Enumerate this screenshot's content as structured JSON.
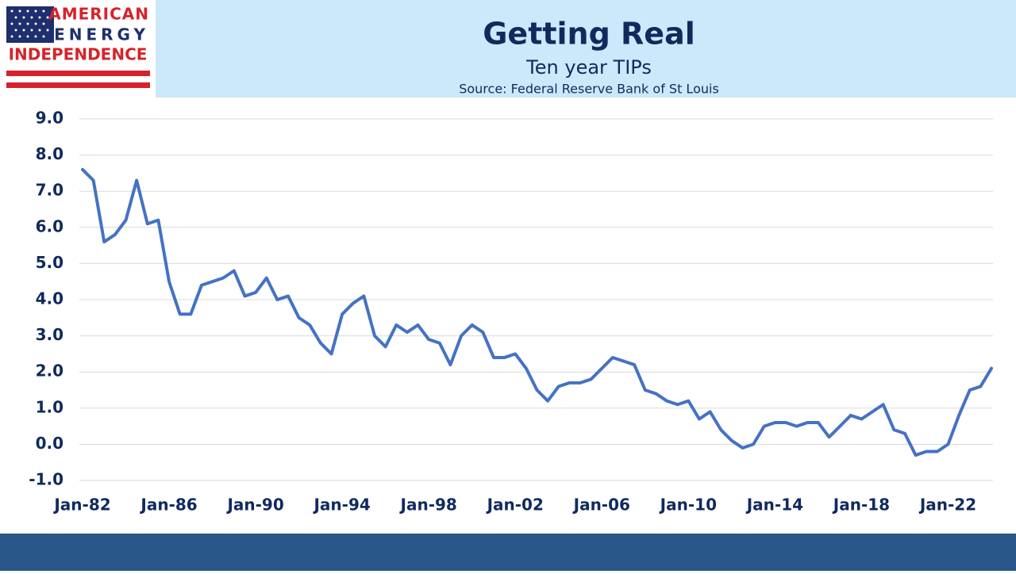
{
  "logo": {
    "lines": [
      "AMERICAN",
      "ENERGY",
      "INDEPENDENCE"
    ]
  },
  "chart_data": {
    "type": "line",
    "title": "Getting Real",
    "subtitle": "Ten year TIPs",
    "source": "Source: Federal Reserve Bank of St Louis",
    "categories": [
      "Jan-82",
      null,
      null,
      null,
      null,
      null,
      null,
      null,
      "Jan-86",
      null,
      null,
      null,
      null,
      null,
      null,
      null,
      "Jan-90",
      null,
      null,
      null,
      null,
      null,
      null,
      null,
      "Jan-94",
      null,
      null,
      null,
      null,
      null,
      null,
      null,
      "Jan-98",
      null,
      null,
      null,
      null,
      null,
      null,
      null,
      "Jan-02",
      null,
      null,
      null,
      null,
      null,
      null,
      null,
      "Jan-06",
      null,
      null,
      null,
      null,
      null,
      null,
      null,
      "Jan-10",
      null,
      null,
      null,
      null,
      null,
      null,
      null,
      "Jan-14",
      null,
      null,
      null,
      null,
      null,
      null,
      null,
      "Jan-18",
      null,
      null,
      null,
      null,
      null,
      null,
      null,
      "Jan-22",
      null,
      null,
      null,
      null
    ],
    "values": [
      7.6,
      7.3,
      5.6,
      5.8,
      6.2,
      7.3,
      6.1,
      6.2,
      4.5,
      3.6,
      3.6,
      4.4,
      4.5,
      4.6,
      4.8,
      4.1,
      4.2,
      4.6,
      4.0,
      4.1,
      3.5,
      3.3,
      2.8,
      2.5,
      3.6,
      3.9,
      4.1,
      3.0,
      2.7,
      3.3,
      3.1,
      3.3,
      2.9,
      2.8,
      2.2,
      3.0,
      3.3,
      3.1,
      2.4,
      2.4,
      2.5,
      2.1,
      1.5,
      1.2,
      1.6,
      1.7,
      1.7,
      1.8,
      2.1,
      2.4,
      2.3,
      2.2,
      1.5,
      1.4,
      1.2,
      1.1,
      1.2,
      0.7,
      0.9,
      0.4,
      0.1,
      -0.1,
      0.0,
      0.5,
      0.6,
      0.6,
      0.5,
      0.6,
      0.6,
      0.2,
      0.5,
      0.8,
      0.7,
      0.9,
      1.1,
      0.4,
      0.3,
      -0.3,
      -0.2,
      -0.2,
      0.0,
      0.8,
      1.5,
      1.6,
      2.1
    ],
    "color": "#4472c4",
    "ylim": [
      -1,
      9
    ],
    "yticks": [
      {
        "value": -1,
        "label": "-1.0"
      },
      {
        "value": 0,
        "label": "0.0"
      },
      {
        "value": 1,
        "label": "1.0"
      },
      {
        "value": 2,
        "label": "2.0"
      },
      {
        "value": 3,
        "label": "3.0"
      },
      {
        "value": 4,
        "label": "4.0"
      },
      {
        "value": 5,
        "label": "5.0"
      },
      {
        "value": 6,
        "label": "6.0"
      },
      {
        "value": 7,
        "label": "7.0"
      },
      {
        "value": 8,
        "label": "8.0"
      },
      {
        "value": 9,
        "label": "9.0"
      }
    ],
    "grid": true
  }
}
